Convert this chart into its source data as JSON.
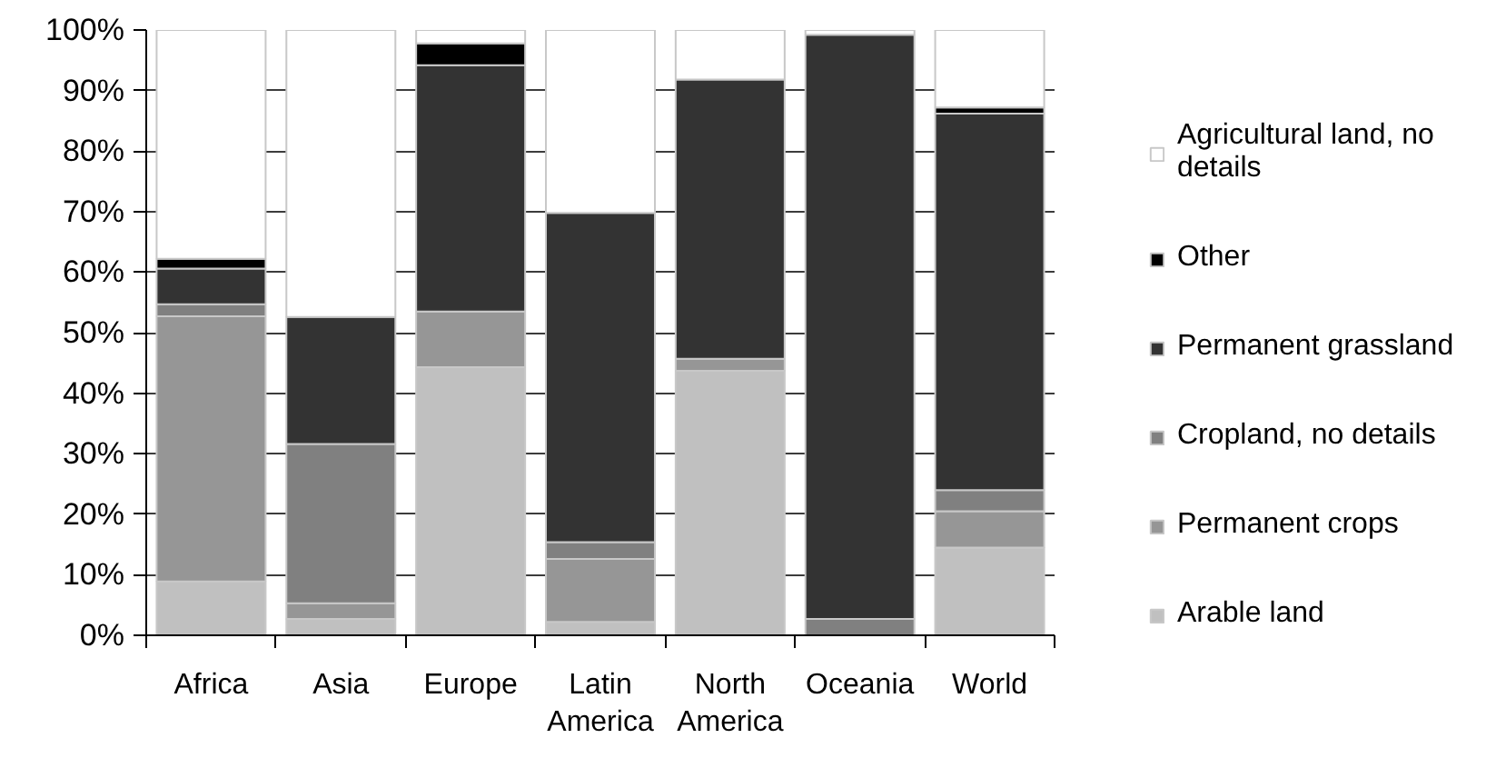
{
  "chart_data": {
    "type": "bar",
    "stacked": true,
    "categories": [
      "Africa",
      "Asia",
      "Europe",
      "Latin America",
      "North America",
      "Oceania",
      "World"
    ],
    "series": [
      {
        "name": "Arable land",
        "color": "#c0c0c0",
        "values": [
          8.9,
          2.7,
          44.3,
          2.2,
          43.7,
          null,
          14.5
        ]
      },
      {
        "name": "Permanent crops",
        "color": "#969696",
        "values": [
          43.8,
          2.6,
          9.2,
          10.4,
          2.0,
          null,
          6.0
        ]
      },
      {
        "name": "Cropland, no details",
        "color": "#808080",
        "values": [
          2.0,
          26.3,
          null,
          2.8,
          null,
          2.7,
          3.5
        ]
      },
      {
        "name": "Permanent grassland",
        "color": "#333333",
        "values": [
          5.9,
          21.0,
          40.7,
          54.4,
          46.1,
          96.5,
          62.2
        ]
      },
      {
        "name": "Other",
        "color": "#000000",
        "values": [
          1.6,
          null,
          3.6,
          null,
          null,
          null,
          1.0
        ]
      },
      {
        "name": "Agricultural land, no details",
        "color": "#ffffff",
        "values": [
          37.8,
          47.4,
          2.2,
          30.2,
          8.2,
          0.8,
          12.8
        ]
      }
    ],
    "ylim": [
      0,
      100
    ],
    "yticks": [
      {
        "value": 0,
        "label": "0%"
      },
      {
        "value": 10,
        "label": "10%"
      },
      {
        "value": 20,
        "label": "20%"
      },
      {
        "value": 30,
        "label": "30%"
      },
      {
        "value": 40,
        "label": "40%"
      },
      {
        "value": 50,
        "label": "50%"
      },
      {
        "value": 60,
        "label": "60%"
      },
      {
        "value": 70,
        "label": "70%"
      },
      {
        "value": 80,
        "label": "80%"
      },
      {
        "value": 90,
        "label": "90%"
      },
      {
        "value": 100,
        "label": "100%"
      }
    ],
    "grid": "y",
    "legend": "right"
  }
}
